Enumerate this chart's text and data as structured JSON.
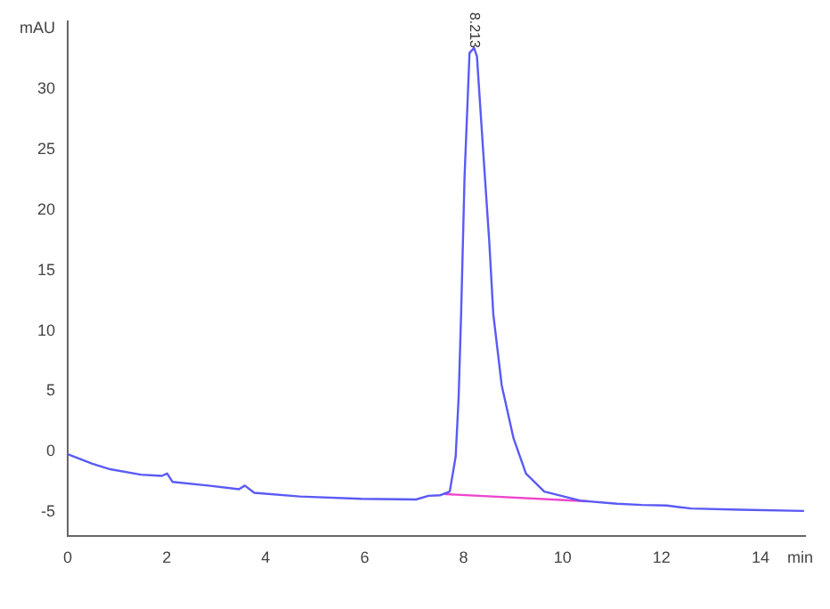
{
  "chart_data": {
    "type": "line",
    "xlim": [
      0,
      14.9
    ],
    "ylim": [
      -7,
      35.6
    ],
    "xticks": [
      0,
      2,
      4,
      6,
      8,
      10,
      12,
      14,
      {
        "value": 14.8,
        "label": "min"
      }
    ],
    "yticks": [
      -5,
      0,
      5,
      10,
      15,
      20,
      25,
      30,
      {
        "value": 35,
        "label": "mAU"
      }
    ],
    "grid": false,
    "legend": false,
    "marker": "none",
    "line_style": "solid",
    "annotations": [
      {
        "text": "8.213",
        "x": 8.213,
        "y": 33.4
      }
    ],
    "series": [
      {
        "color": "#5a5af5",
        "x": [
          0,
          0.5,
          0.86,
          1.48,
          1.9,
          2.01,
          2.12,
          2.84,
          3.46,
          3.58,
          3.77,
          4.69,
          5.93,
          7.04,
          7.29,
          7.53,
          7.72,
          7.84,
          7.9,
          7.95,
          8.02,
          8.12,
          8.213,
          8.27,
          8.4,
          8.52,
          8.6,
          8.77,
          9.01,
          9.26,
          9.63,
          10.37,
          11.1,
          11.6,
          12.1,
          12.6,
          13.6,
          14.88
        ],
        "values": [
          -0.2,
          -1.0,
          -1.45,
          -1.9,
          -2.0,
          -1.8,
          -2.5,
          -2.8,
          -3.1,
          -2.8,
          -3.4,
          -3.7,
          -3.9,
          -3.95,
          -3.65,
          -3.6,
          -3.3,
          -0.4,
          4.5,
          11.4,
          22.8,
          33.0,
          33.4,
          32.7,
          24.6,
          17.3,
          11.4,
          5.5,
          1.1,
          -1.8,
          -3.3,
          -4.05,
          -4.3,
          -4.4,
          -4.45,
          -4.7,
          -4.8,
          -4.9
        ]
      },
      {
        "color": "#ee44cc",
        "x": [
          7.6,
          10.5
        ],
        "values": [
          -3.5,
          -4.1
        ]
      }
    ]
  }
}
